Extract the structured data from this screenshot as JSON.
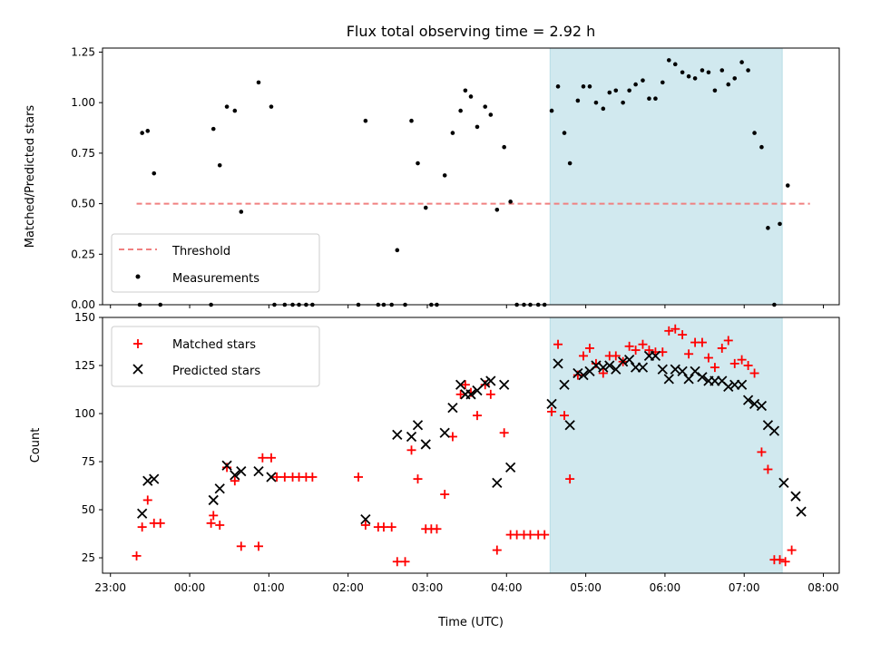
{
  "chart_data": [
    {
      "type": "scatter",
      "title": "Flux total observing time = 2.92 h",
      "xlabel": "",
      "ylabel": "Matched/Predicted stars",
      "ylim": [
        0,
        1.27
      ],
      "yticks": [
        0.0,
        0.25,
        0.5,
        0.75,
        1.0,
        1.25
      ],
      "ytick_labels": [
        "0.00",
        "0.25",
        "0.50",
        "0.75",
        "1.00",
        "1.25"
      ],
      "xlim_hours": [
        -1.1,
        8.2
      ],
      "shaded_region_hours": [
        4.55,
        7.48
      ],
      "shaded_color": "#d1e9ef",
      "legend_position": "lower-left",
      "threshold": {
        "name": "Threshold",
        "y": 0.5,
        "x_start": 23.33,
        "x_end": 31.83,
        "color": "#f08080"
      },
      "series": [
        {
          "name": "Measurements",
          "color": "#000000",
          "points": [
            [
              -0.63,
              0.0
            ],
            [
              -0.6,
              0.85
            ],
            [
              -0.53,
              0.86
            ],
            [
              -0.45,
              0.65
            ],
            [
              -0.37,
              0.0
            ],
            [
              0.27,
              0.0
            ],
            [
              0.3,
              0.87
            ],
            [
              0.38,
              0.69
            ],
            [
              0.47,
              0.98
            ],
            [
              0.57,
              0.96
            ],
            [
              0.65,
              0.46
            ],
            [
              0.87,
              1.1
            ],
            [
              1.03,
              0.98
            ],
            [
              1.07,
              0.0
            ],
            [
              1.2,
              0.0
            ],
            [
              1.3,
              0.0
            ],
            [
              1.38,
              0.0
            ],
            [
              1.47,
              0.0
            ],
            [
              1.55,
              0.0
            ],
            [
              2.13,
              0.0
            ],
            [
              2.22,
              0.91
            ],
            [
              2.38,
              0.0
            ],
            [
              2.45,
              0.0
            ],
            [
              2.55,
              0.0
            ],
            [
              2.62,
              0.27
            ],
            [
              2.72,
              0.0
            ],
            [
              2.8,
              0.91
            ],
            [
              2.88,
              0.7
            ],
            [
              2.98,
              0.48
            ],
            [
              3.05,
              0.0
            ],
            [
              3.12,
              0.0
            ],
            [
              3.22,
              0.64
            ],
            [
              3.32,
              0.85
            ],
            [
              3.42,
              0.96
            ],
            [
              3.48,
              1.06
            ],
            [
              3.55,
              1.03
            ],
            [
              3.63,
              0.88
            ],
            [
              3.73,
              0.98
            ],
            [
              3.8,
              0.94
            ],
            [
              3.88,
              0.47
            ],
            [
              3.97,
              0.78
            ],
            [
              4.05,
              0.51
            ],
            [
              4.13,
              0.0
            ],
            [
              4.22,
              0.0
            ],
            [
              4.3,
              0.0
            ],
            [
              4.4,
              0.0
            ],
            [
              4.48,
              0.0
            ],
            [
              4.57,
              0.96
            ],
            [
              4.65,
              1.08
            ],
            [
              4.73,
              0.85
            ],
            [
              4.8,
              0.7
            ],
            [
              4.9,
              1.01
            ],
            [
              4.97,
              1.08
            ],
            [
              5.05,
              1.08
            ],
            [
              5.13,
              1.0
            ],
            [
              5.22,
              0.97
            ],
            [
              5.3,
              1.05
            ],
            [
              5.38,
              1.06
            ],
            [
              5.47,
              1.0
            ],
            [
              5.55,
              1.06
            ],
            [
              5.63,
              1.09
            ],
            [
              5.72,
              1.11
            ],
            [
              5.8,
              1.02
            ],
            [
              5.88,
              1.02
            ],
            [
              5.97,
              1.1
            ],
            [
              6.05,
              1.21
            ],
            [
              6.13,
              1.19
            ],
            [
              6.22,
              1.15
            ],
            [
              6.3,
              1.13
            ],
            [
              6.38,
              1.12
            ],
            [
              6.47,
              1.16
            ],
            [
              6.55,
              1.15
            ],
            [
              6.63,
              1.06
            ],
            [
              6.72,
              1.16
            ],
            [
              6.8,
              1.09
            ],
            [
              6.88,
              1.12
            ],
            [
              6.97,
              1.2
            ],
            [
              7.05,
              1.16
            ],
            [
              7.13,
              0.85
            ],
            [
              7.22,
              0.78
            ],
            [
              7.3,
              0.38
            ],
            [
              7.38,
              0.0
            ],
            [
              7.45,
              0.4
            ],
            [
              7.55,
              0.59
            ]
          ]
        }
      ]
    },
    {
      "type": "scatter",
      "title": "",
      "xlabel": "Time (UTC)",
      "ylabel": "Count",
      "ylim": [
        17,
        150
      ],
      "yticks": [
        25,
        50,
        75,
        100,
        125,
        150
      ],
      "ytick_labels": [
        "25",
        "50",
        "75",
        "100",
        "125",
        "150"
      ],
      "xticks_hours": [
        -1,
        0,
        1,
        2,
        3,
        4,
        5,
        6,
        7,
        8
      ],
      "xtick_labels": [
        "23:00",
        "00:00",
        "01:00",
        "02:00",
        "03:00",
        "04:00",
        "05:00",
        "06:00",
        "07:00",
        "08:00"
      ],
      "xlim_hours": [
        -1.1,
        8.2
      ],
      "shaded_region_hours": [
        4.55,
        7.48
      ],
      "shaded_color": "#d1e9ef",
      "legend_position": "upper-left",
      "series": [
        {
          "name": "Matched stars",
          "marker": "plus",
          "color": "#ff0000",
          "points": [
            [
              -0.67,
              26
            ],
            [
              -0.6,
              41
            ],
            [
              -0.53,
              55
            ],
            [
              -0.45,
              43
            ],
            [
              -0.37,
              43
            ],
            [
              0.27,
              43
            ],
            [
              0.3,
              47
            ],
            [
              0.38,
              42
            ],
            [
              0.47,
              72
            ],
            [
              0.57,
              65
            ],
            [
              0.65,
              31
            ],
            [
              0.87,
              31
            ],
            [
              0.92,
              77
            ],
            [
              1.03,
              77
            ],
            [
              1.1,
              67
            ],
            [
              1.2,
              67
            ],
            [
              1.3,
              67
            ],
            [
              1.38,
              67
            ],
            [
              1.47,
              67
            ],
            [
              1.55,
              67
            ],
            [
              2.13,
              67
            ],
            [
              2.22,
              42
            ],
            [
              2.38,
              41
            ],
            [
              2.45,
              41
            ],
            [
              2.55,
              41
            ],
            [
              2.62,
              23
            ],
            [
              2.72,
              23
            ],
            [
              2.8,
              81
            ],
            [
              2.88,
              66
            ],
            [
              2.98,
              40
            ],
            [
              3.05,
              40
            ],
            [
              3.12,
              40
            ],
            [
              3.22,
              58
            ],
            [
              3.32,
              88
            ],
            [
              3.42,
              110
            ],
            [
              3.48,
              115
            ],
            [
              3.55,
              111
            ],
            [
              3.63,
              99
            ],
            [
              3.73,
              115
            ],
            [
              3.8,
              110
            ],
            [
              3.88,
              29
            ],
            [
              3.97,
              90
            ],
            [
              4.05,
              37
            ],
            [
              4.13,
              37
            ],
            [
              4.22,
              37
            ],
            [
              4.3,
              37
            ],
            [
              4.4,
              37
            ],
            [
              4.48,
              37
            ],
            [
              4.57,
              101
            ],
            [
              4.65,
              136
            ],
            [
              4.73,
              99
            ],
            [
              4.8,
              66
            ],
            [
              4.9,
              120
            ],
            [
              4.97,
              130
            ],
            [
              5.05,
              134
            ],
            [
              5.13,
              126
            ],
            [
              5.22,
              121
            ],
            [
              5.3,
              130
            ],
            [
              5.38,
              130
            ],
            [
              5.47,
              127
            ],
            [
              5.55,
              135
            ],
            [
              5.63,
              133
            ],
            [
              5.72,
              136
            ],
            [
              5.8,
              133
            ],
            [
              5.88,
              132
            ],
            [
              5.97,
              132
            ],
            [
              6.05,
              143
            ],
            [
              6.13,
              144
            ],
            [
              6.22,
              141
            ],
            [
              6.3,
              131
            ],
            [
              6.38,
              137
            ],
            [
              6.47,
              137
            ],
            [
              6.55,
              129
            ],
            [
              6.63,
              124
            ],
            [
              6.72,
              134
            ],
            [
              6.8,
              138
            ],
            [
              6.88,
              126
            ],
            [
              6.97,
              128
            ],
            [
              7.05,
              125
            ],
            [
              7.13,
              121
            ],
            [
              7.22,
              80
            ],
            [
              7.3,
              71
            ],
            [
              7.38,
              24
            ],
            [
              7.45,
              24
            ],
            [
              7.52,
              23
            ],
            [
              7.6,
              29
            ]
          ]
        },
        {
          "name": "Predicted stars",
          "marker": "x",
          "color": "#000000",
          "points": [
            [
              -0.6,
              48
            ],
            [
              -0.53,
              65
            ],
            [
              -0.45,
              66
            ],
            [
              0.3,
              55
            ],
            [
              0.38,
              61
            ],
            [
              0.47,
              73
            ],
            [
              0.57,
              68
            ],
            [
              0.65,
              70
            ],
            [
              0.87,
              70
            ],
            [
              1.03,
              67
            ],
            [
              2.22,
              45
            ],
            [
              2.62,
              89
            ],
            [
              2.8,
              88
            ],
            [
              2.88,
              94
            ],
            [
              2.98,
              84
            ],
            [
              3.22,
              90
            ],
            [
              3.32,
              103
            ],
            [
              3.42,
              115
            ],
            [
              3.48,
              110
            ],
            [
              3.55,
              110
            ],
            [
              3.63,
              112
            ],
            [
              3.73,
              116
            ],
            [
              3.8,
              117
            ],
            [
              3.88,
              64
            ],
            [
              3.97,
              115
            ],
            [
              4.05,
              72
            ],
            [
              4.57,
              105
            ],
            [
              4.65,
              126
            ],
            [
              4.73,
              115
            ],
            [
              4.8,
              94
            ],
            [
              4.9,
              121
            ],
            [
              4.97,
              120
            ],
            [
              5.05,
              122
            ],
            [
              5.13,
              125
            ],
            [
              5.22,
              124
            ],
            [
              5.3,
              125
            ],
            [
              5.38,
              123
            ],
            [
              5.47,
              127
            ],
            [
              5.55,
              128
            ],
            [
              5.63,
              124
            ],
            [
              5.72,
              124
            ],
            [
              5.8,
              130
            ],
            [
              5.88,
              130
            ],
            [
              5.97,
              123
            ],
            [
              6.05,
              118
            ],
            [
              6.13,
              123
            ],
            [
              6.22,
              122
            ],
            [
              6.3,
              118
            ],
            [
              6.38,
              122
            ],
            [
              6.47,
              119
            ],
            [
              6.55,
              117
            ],
            [
              6.63,
              117
            ],
            [
              6.72,
              117
            ],
            [
              6.8,
              114
            ],
            [
              6.88,
              115
            ],
            [
              6.97,
              115
            ],
            [
              7.05,
              107
            ],
            [
              7.13,
              105
            ],
            [
              7.22,
              104
            ],
            [
              7.3,
              94
            ],
            [
              7.38,
              91
            ],
            [
              7.5,
              64
            ],
            [
              7.65,
              57
            ],
            [
              7.72,
              49
            ]
          ]
        }
      ]
    }
  ]
}
